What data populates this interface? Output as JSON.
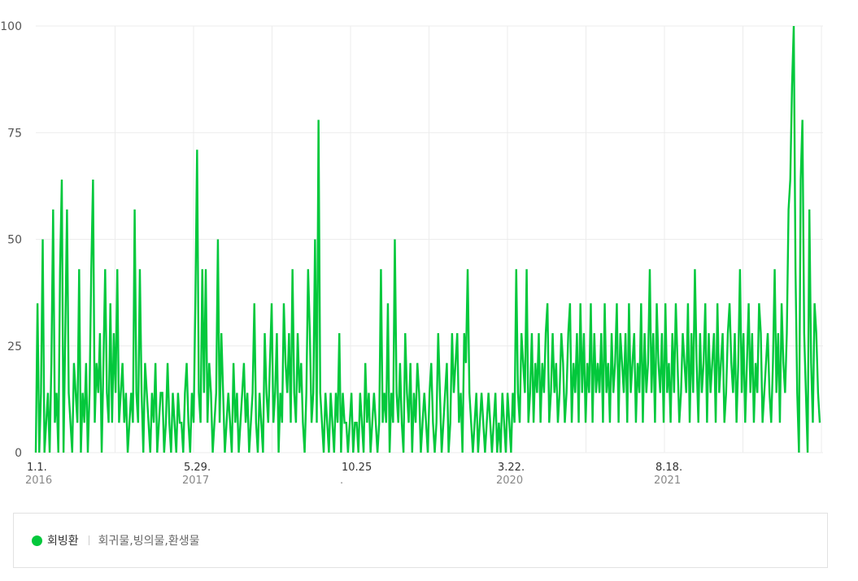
{
  "colors": {
    "series": "#03c83c",
    "grid": "#ececec",
    "axis_text": "#555555"
  },
  "chart_data": {
    "type": "line",
    "ylim": [
      0,
      100
    ],
    "y_ticks": [
      "0",
      "25",
      "50",
      "75",
      "100"
    ],
    "grid": true,
    "legend_position": "bottom",
    "x_ticks": [
      {
        "label": "1.1.",
        "year": "2016"
      },
      {
        "label": "5.29.",
        "year": "2017"
      },
      {
        "label": "10.25",
        "year": "."
      },
      {
        "label": "3.22.",
        "year": "2020"
      },
      {
        "label": "8.18.",
        "year": "2021"
      }
    ],
    "x_start": "2016-01-01",
    "x_end": "2022-10-10",
    "series": [
      {
        "name": "회빙환",
        "sampling": "daily, start 2016-01-01 (values read from the plotted line)",
        "values": [
          0,
          35,
          0,
          14,
          50,
          0,
          7,
          14,
          0,
          21,
          57,
          7,
          14,
          0,
          43,
          64,
          0,
          28,
          57,
          14,
          7,
          0,
          21,
          14,
          7,
          43,
          0,
          14,
          7,
          21,
          0,
          14,
          43,
          64,
          7,
          21,
          14,
          28,
          0,
          21,
          43,
          14,
          7,
          35,
          7,
          28,
          14,
          43,
          7,
          14,
          21,
          7,
          14,
          0,
          7,
          14,
          7,
          57,
          14,
          7,
          43,
          14,
          0,
          21,
          14,
          7,
          0,
          14,
          7,
          21,
          0,
          7,
          14,
          14,
          0,
          7,
          21,
          7,
          0,
          14,
          7,
          0,
          14,
          7,
          7,
          0,
          14,
          21,
          7,
          0,
          14,
          7,
          35,
          71,
          14,
          7,
          43,
          14,
          43,
          7,
          21,
          14,
          0,
          7,
          14,
          50,
          7,
          28,
          14,
          0,
          7,
          14,
          7,
          0,
          21,
          7,
          14,
          0,
          7,
          14,
          21,
          7,
          14,
          0,
          7,
          14,
          35,
          7,
          0,
          14,
          7,
          0,
          28,
          14,
          7,
          21,
          35,
          7,
          14,
          28,
          0,
          14,
          7,
          35,
          21,
          14,
          28,
          7,
          43,
          14,
          7,
          28,
          14,
          21,
          7,
          0,
          14,
          43,
          28,
          7,
          14,
          50,
          7,
          78,
          14,
          7,
          0,
          14,
          7,
          0,
          14,
          7,
          0,
          14,
          7,
          28,
          0,
          14,
          7,
          7,
          0,
          7,
          14,
          0,
          7,
          7,
          0,
          14,
          7,
          0,
          21,
          7,
          14,
          0,
          7,
          14,
          7,
          0,
          7,
          43,
          7,
          14,
          7,
          35,
          0,
          14,
          7,
          50,
          14,
          7,
          21,
          7,
          0,
          28,
          14,
          7,
          21,
          0,
          14,
          7,
          21,
          14,
          0,
          7,
          14,
          7,
          0,
          14,
          21,
          7,
          0,
          7,
          28,
          14,
          0,
          7,
          14,
          21,
          0,
          7,
          28,
          14,
          21,
          28,
          7,
          14,
          0,
          28,
          21,
          43,
          14,
          7,
          0,
          7,
          14,
          0,
          7,
          14,
          7,
          0,
          7,
          14,
          7,
          0,
          7,
          14,
          0,
          7,
          0,
          14,
          7,
          0,
          14,
          7,
          0,
          14,
          7,
          43,
          14,
          7,
          28,
          21,
          14,
          43,
          7,
          14,
          28,
          7,
          21,
          14,
          28,
          7,
          21,
          14,
          28,
          35,
          7,
          14,
          28,
          14,
          21,
          7,
          14,
          28,
          21,
          7,
          14,
          28,
          35,
          7,
          21,
          14,
          28,
          7,
          35,
          14,
          28,
          7,
          21,
          14,
          35,
          7,
          28,
          14,
          21,
          14,
          28,
          7,
          35,
          14,
          21,
          7,
          28,
          14,
          21,
          35,
          7,
          28,
          21,
          14,
          28,
          7,
          35,
          14,
          21,
          28,
          7,
          21,
          14,
          35,
          7,
          28,
          14,
          21,
          43,
          14,
          28,
          7,
          35,
          21,
          14,
          28,
          7,
          35,
          14,
          21,
          7,
          28,
          14,
          35,
          21,
          7,
          14,
          28,
          21,
          14,
          35,
          7,
          28,
          14,
          43,
          21,
          7,
          28,
          14,
          21,
          35,
          7,
          28,
          14,
          21,
          28,
          7,
          35,
          14,
          21,
          28,
          7,
          14,
          28,
          35,
          21,
          14,
          28,
          7,
          21,
          43,
          14,
          28,
          7,
          21,
          35,
          14,
          28,
          7,
          21,
          14,
          35,
          28,
          7,
          14,
          21,
          28,
          14,
          7,
          21,
          43,
          14,
          28,
          7,
          35,
          21,
          14,
          28,
          57,
          64,
          86,
          100,
          43,
          14,
          0,
          64,
          78,
          28,
          14,
          0,
          57,
          21,
          7,
          35,
          28,
          14,
          7
        ]
      }
    ]
  },
  "legend": {
    "series_name": "회빙환",
    "related_terms": "회귀물,빙의물,환생물"
  }
}
